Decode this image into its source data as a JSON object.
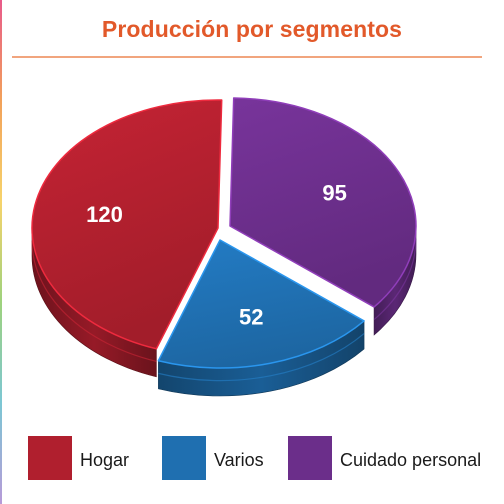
{
  "chart_data": {
    "type": "pie",
    "title": "Producción por segmentos",
    "categories": [
      "Hogar",
      "Varios",
      "Cuidado personal"
    ],
    "values": [
      120,
      52,
      95
    ],
    "data_labels": [
      "120",
      "52",
      "95"
    ],
    "colors": [
      "#b01f2e",
      "#1f6fb0",
      "#6b2e8a"
    ],
    "legend_position": "bottom",
    "style": "3d-exploded"
  }
}
